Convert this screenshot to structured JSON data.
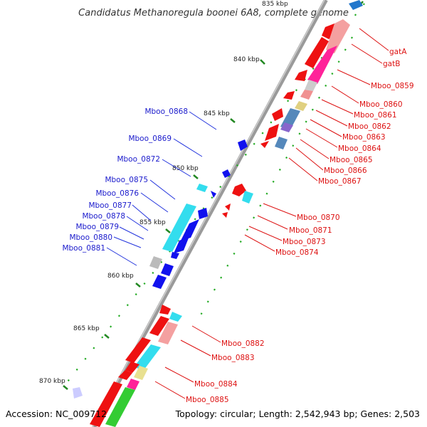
{
  "title": "Candidatus Methanoregula boonei 6A8, complete genome",
  "footer": {
    "accession": "Accession: NC_009712",
    "topology": "Topology: circular; Length: 2,542,943 bp; Genes: 2,503"
  },
  "ruler": [
    {
      "label": "835 kbp"
    },
    {
      "label": "840 kbp"
    },
    {
      "label": "845 kbp"
    },
    {
      "label": "850 kbp"
    },
    {
      "label": "855 kbp"
    },
    {
      "label": "860 kbp"
    },
    {
      "label": "865 kbp"
    },
    {
      "label": "870 kbp"
    }
  ],
  "left_labels": [
    "Mboo_0868",
    "Mboo_0869",
    "Mboo_0872",
    "Mboo_0875",
    "Mboo_0876",
    "Mboo_0877",
    "Mboo_0878",
    "Mboo_0879",
    "Mboo_0880",
    "Mboo_0881"
  ],
  "right_labels": [
    "gatA",
    "gatB",
    "Mboo_0859",
    "Mboo_0860",
    "Mboo_0861",
    "Mboo_0862",
    "Mboo_0863",
    "Mboo_0864",
    "Mboo_0865",
    "Mboo_0866",
    "Mboo_0867",
    "Mboo_0870",
    "Mboo_0871",
    "Mboo_0873",
    "Mboo_0874",
    "Mboo_0882",
    "Mboo_0883",
    "Mboo_0884",
    "Mboo_0885"
  ],
  "colors": {
    "backbone": "#888888",
    "left_label": "#1a1acc",
    "right_label": "#dd1111",
    "tick_major": "#228822",
    "tick_minor": "#22aa22"
  }
}
